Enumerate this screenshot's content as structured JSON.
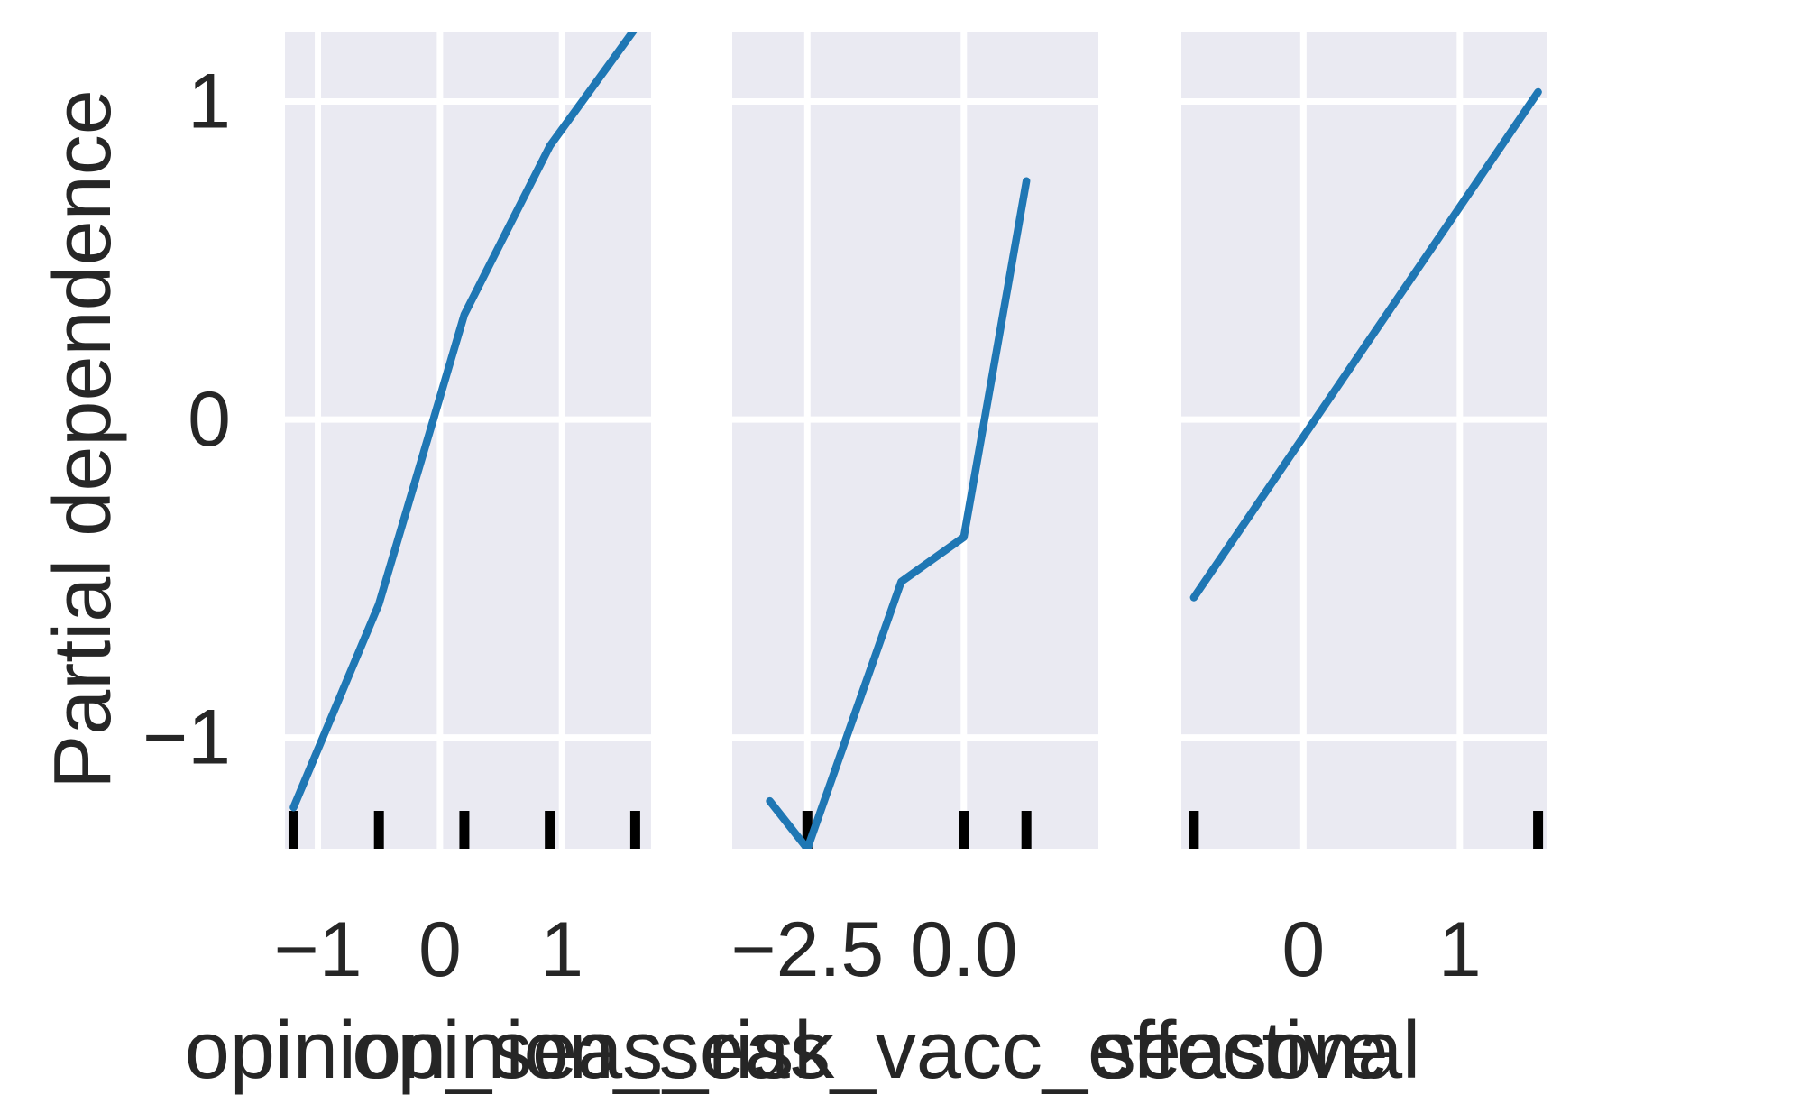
{
  "chart_data": [
    {
      "type": "line",
      "panel": 1,
      "xlabel": "opinion_seas_risk",
      "ylabel": "Partial dependence",
      "xlim": [
        -1.27,
        1.73
      ],
      "ylim": [
        -1.35,
        1.22
      ],
      "xticks": [
        -1,
        0,
        1
      ],
      "xtick_labels": [
        "−1",
        "0",
        "1"
      ],
      "yticks": [
        -1,
        0,
        1
      ],
      "ytick_labels": [
        "−1",
        "0",
        "1"
      ],
      "x": [
        -1.2,
        -0.5,
        0.2,
        0.9,
        1.6
      ],
      "y": [
        -1.22,
        -0.58,
        0.33,
        0.86,
        1.23
      ],
      "rug": [
        -1.2,
        -0.5,
        0.2,
        0.9,
        1.6
      ]
    },
    {
      "type": "line",
      "panel": 2,
      "xlabel": "opinion_seas_vacc_effective",
      "xlim": [
        -3.7,
        2.15
      ],
      "ylim": [
        -1.35,
        1.22
      ],
      "xticks": [
        -2.5,
        0.0
      ],
      "xtick_labels": [
        "−2.5",
        "0.0"
      ],
      "x": [
        -3.1,
        -2.5,
        -1.0,
        0.0,
        1.0
      ],
      "y": [
        -1.2,
        -1.35,
        -0.51,
        -0.37,
        0.75
      ],
      "rug": [
        -2.5,
        0.0,
        1.0
      ]
    },
    {
      "type": "line",
      "panel": 3,
      "xlabel": "seasonal",
      "xlim": [
        -0.78,
        1.56
      ],
      "ylim": [
        -1.35,
        1.22
      ],
      "xticks": [
        0,
        1
      ],
      "xtick_labels": [
        "0",
        "1"
      ],
      "x": [
        -0.7,
        1.5
      ],
      "y": [
        -0.56,
        1.03
      ],
      "rug": [
        -0.7,
        1.5
      ]
    }
  ],
  "colors": {
    "background": "#eaeaf2",
    "grid": "#ffffff",
    "line": "#1f77b4",
    "rug": "#000000",
    "text": "#262626"
  }
}
